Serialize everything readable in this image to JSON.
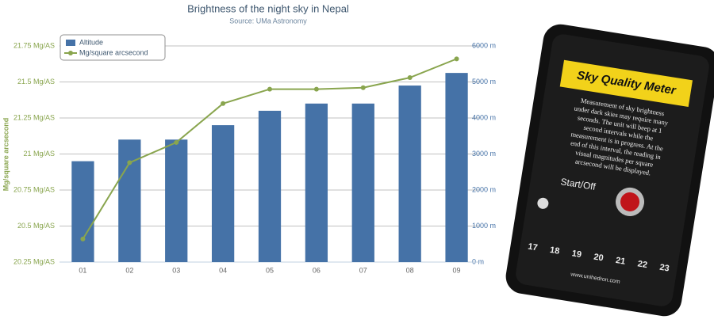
{
  "chart_data": {
    "type": "bar",
    "title": "Brightness of the night sky in Nepal",
    "subtitle": "Source: UMa Astronomy",
    "y_label": "Mg/square arcsecond",
    "categories": [
      "01",
      "02",
      "03",
      "04",
      "05",
      "06",
      "07",
      "08",
      "09"
    ],
    "series": [
      {
        "name": "Altitude",
        "type": "bar",
        "color": "#4572a7",
        "axis": "y2",
        "values": [
          2800,
          3400,
          3400,
          3800,
          4200,
          4400,
          4400,
          4900,
          5250
        ]
      },
      {
        "name": "Mg/square arcsecond",
        "type": "line",
        "color": "#89a54e",
        "values": [
          20.41,
          20.94,
          21.08,
          21.35,
          21.45,
          21.45,
          21.46,
          21.53,
          21.66
        ]
      }
    ],
    "ylim": [
      20.25,
      21.75
    ],
    "yticks": [
      {
        "value": 20.25,
        "label": "20.25 Mg/AS"
      },
      {
        "value": 20.5,
        "label": "20.5 Mg/AS"
      },
      {
        "value": 20.75,
        "label": "20.75 Mg/AS"
      },
      {
        "value": 21,
        "label": "21 Mg/AS"
      },
      {
        "value": 21.25,
        "label": "21.25 Mg/AS"
      },
      {
        "value": 21.5,
        "label": "21.5 Mg/AS"
      },
      {
        "value": 21.75,
        "label": "21.75 Mg/AS"
      }
    ],
    "y2lim": [
      0,
      6000
    ],
    "y2ticks": [
      {
        "value": 0,
        "label": "0 m"
      },
      {
        "value": 1000,
        "label": "1000 m"
      },
      {
        "value": 2000,
        "label": "2000 m"
      },
      {
        "value": 3000,
        "label": "3000 m"
      },
      {
        "value": 4000,
        "label": "4000 m"
      },
      {
        "value": 5000,
        "label": "5000 m"
      },
      {
        "value": 6000,
        "label": "6000 m"
      }
    ],
    "grid": true,
    "legend": "top-left"
  },
  "device": {
    "title": "Sky Quality Meter",
    "text": [
      "Measurement of sky brightness",
      "under dark skies may require many",
      "seconds. The unit will beep at 1",
      "second intervals while the",
      "measurement is in progress. At the",
      "end of this interval, the reading in",
      "visual magnitudes per square",
      "arcsecond will be displayed."
    ],
    "button": "Start/Off",
    "scale": [
      "17",
      "18",
      "19",
      "20",
      "21",
      "22",
      "23"
    ],
    "url": "www.unihedron.com"
  }
}
